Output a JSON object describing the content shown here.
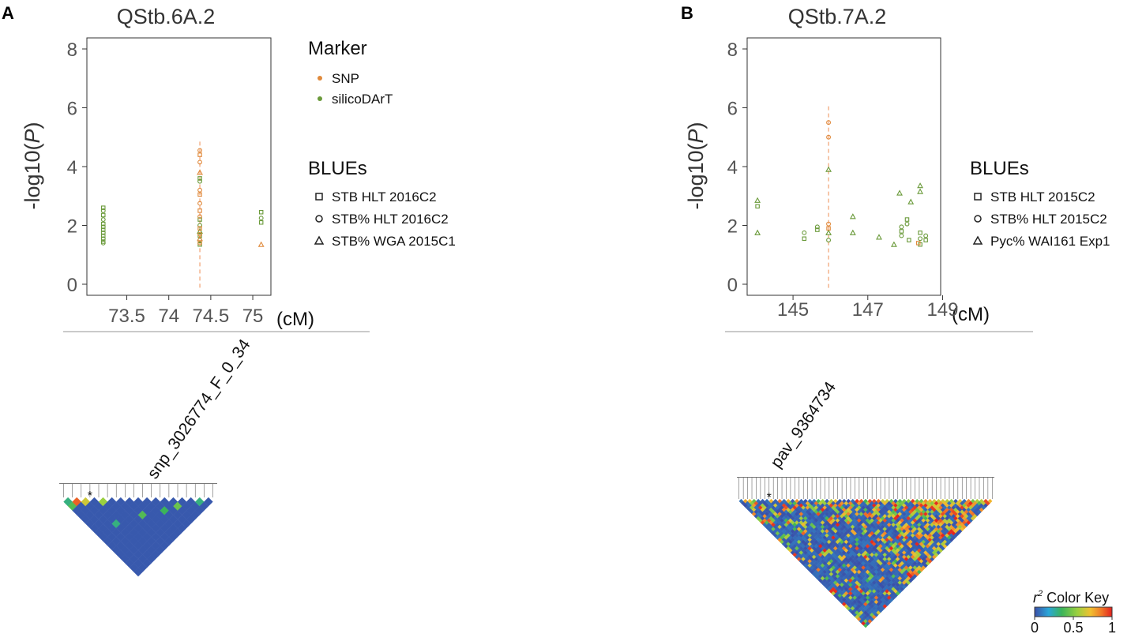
{
  "chart_data": [
    {
      "type": "scatter",
      "panel_label": "A",
      "title": "QStb.6A.2",
      "ylabel_prefix": "-log10(",
      "ylabel_var": "P",
      "ylabel_suffix": ")",
      "xunit": "(cM)",
      "ylim": [
        0,
        8
      ],
      "xlim": [
        73.1,
        75.15
      ],
      "xticks": [
        73.5,
        74,
        74.5,
        75
      ],
      "xtick_labels": [
        "73.5",
        "74",
        "74.5",
        "75"
      ],
      "yticks": [
        0,
        2,
        4,
        6,
        8
      ],
      "ytick_labels": [
        "0",
        "2",
        "4",
        "6",
        "8"
      ],
      "peak_x": 74.37,
      "peak_ymax": 4.85,
      "legend_marker_title": "Marker",
      "legend_marker_items": [
        {
          "label": "SNP",
          "color": "#e08a3c"
        },
        {
          "label": "silicoDArT",
          "color": "#6a9a3a"
        }
      ],
      "legend_blues_title": "BLUEs",
      "legend_blues_items": [
        {
          "label": "STB HLT 2016C2",
          "shape": "square"
        },
        {
          "label": "STB% HLT 2016C2",
          "shape": "circle"
        },
        {
          "label": "STB% WGA 2015C1",
          "shape": "triangle"
        }
      ],
      "series": [
        {
          "name": "silicoDArT",
          "color": "#6a9a3a",
          "points": [
            {
              "x": 73.22,
              "y": 2.6,
              "shape": "square"
            },
            {
              "x": 73.22,
              "y": 2.5,
              "shape": "circle"
            },
            {
              "x": 73.22,
              "y": 2.35,
              "shape": "square"
            },
            {
              "x": 73.22,
              "y": 2.2,
              "shape": "circle"
            },
            {
              "x": 73.22,
              "y": 2.05,
              "shape": "square"
            },
            {
              "x": 73.22,
              "y": 1.95,
              "shape": "circle"
            },
            {
              "x": 73.22,
              "y": 1.85,
              "shape": "square"
            },
            {
              "x": 73.22,
              "y": 1.75,
              "shape": "circle"
            },
            {
              "x": 73.22,
              "y": 1.65,
              "shape": "square"
            },
            {
              "x": 73.22,
              "y": 1.55,
              "shape": "circle"
            },
            {
              "x": 73.22,
              "y": 1.45,
              "shape": "square"
            },
            {
              "x": 73.22,
              "y": 1.4,
              "shape": "circle"
            },
            {
              "x": 74.37,
              "y": 3.6,
              "shape": "square"
            },
            {
              "x": 74.37,
              "y": 3.5,
              "shape": "circle"
            },
            {
              "x": 74.37,
              "y": 2.2,
              "shape": "square"
            },
            {
              "x": 74.37,
              "y": 2.0,
              "shape": "circle"
            },
            {
              "x": 74.37,
              "y": 1.8,
              "shape": "triangle"
            },
            {
              "x": 74.37,
              "y": 1.65,
              "shape": "square"
            },
            {
              "x": 74.37,
              "y": 1.5,
              "shape": "circle"
            },
            {
              "x": 74.37,
              "y": 1.35,
              "shape": "square"
            },
            {
              "x": 75.1,
              "y": 2.45,
              "shape": "square"
            },
            {
              "x": 75.1,
              "y": 2.25,
              "shape": "circle"
            },
            {
              "x": 75.1,
              "y": 2.1,
              "shape": "square"
            }
          ]
        },
        {
          "name": "SNP",
          "color": "#e08a3c",
          "points": [
            {
              "x": 74.37,
              "y": 4.55,
              "shape": "circle"
            },
            {
              "x": 74.37,
              "y": 4.4,
              "shape": "square"
            },
            {
              "x": 74.37,
              "y": 4.15,
              "shape": "circle"
            },
            {
              "x": 74.37,
              "y": 3.8,
              "shape": "triangle"
            },
            {
              "x": 74.37,
              "y": 3.2,
              "shape": "circle"
            },
            {
              "x": 74.37,
              "y": 3.05,
              "shape": "square"
            },
            {
              "x": 74.37,
              "y": 2.75,
              "shape": "circle"
            },
            {
              "x": 74.37,
              "y": 2.5,
              "shape": "square"
            },
            {
              "x": 74.37,
              "y": 2.3,
              "shape": "circle"
            },
            {
              "x": 74.37,
              "y": 1.9,
              "shape": "square"
            },
            {
              "x": 74.37,
              "y": 1.7,
              "shape": "circle"
            },
            {
              "x": 74.37,
              "y": 1.55,
              "shape": "triangle"
            },
            {
              "x": 74.37,
              "y": 1.4,
              "shape": "circle"
            },
            {
              "x": 75.1,
              "y": 1.35,
              "shape": "triangle"
            }
          ]
        }
      ],
      "ld_marker_label": "snp_3026774_F_0_34",
      "ld_n": 18,
      "ld_highlight_index": 3,
      "ld_hot_cells": [
        {
          "i": 0,
          "j": 1,
          "r2": 0.3
        },
        {
          "i": 1,
          "j": 2,
          "r2": 0.9
        },
        {
          "i": 2,
          "j": 3,
          "r2": 0.65
        },
        {
          "i": 0,
          "j": 2,
          "r2": 0.4
        },
        {
          "i": 4,
          "j": 5,
          "r2": 0.55
        },
        {
          "i": 7,
          "j": 11,
          "r2": 0.4
        },
        {
          "i": 10,
          "j": 13,
          "r2": 0.35
        },
        {
          "i": 3,
          "j": 9,
          "r2": 0.3
        },
        {
          "i": 12,
          "j": 14,
          "r2": 0.45
        },
        {
          "i": 15,
          "j": 16,
          "r2": 0.3
        }
      ]
    },
    {
      "type": "scatter",
      "panel_label": "B",
      "title": "QStb.7A.2",
      "ylabel_prefix": "-log10(",
      "ylabel_var": "P",
      "ylabel_suffix": ")",
      "xunit": "(cM)",
      "ylim": [
        0,
        8
      ],
      "xlim": [
        143.9,
        148.8
      ],
      "xticks": [
        145,
        147,
        149
      ],
      "xtick_labels": [
        "145",
        "147",
        "149"
      ],
      "yticks": [
        0,
        2,
        4,
        6,
        8
      ],
      "ytick_labels": [
        "0",
        "2",
        "4",
        "6",
        "8"
      ],
      "peak_x": 145.95,
      "peak_ymax": 6.05,
      "legend_blues_title": "BLUEs",
      "legend_blues_items": [
        {
          "label": "STB HLT 2015C2",
          "shape": "square"
        },
        {
          "label": "STB% HLT 2015C2",
          "shape": "circle"
        },
        {
          "label": "Pyc% WAI161 Exp1",
          "shape": "triangle"
        }
      ],
      "series": [
        {
          "name": "silicoDArT",
          "color": "#6a9a3a",
          "points": [
            {
              "x": 144.05,
              "y": 2.85,
              "shape": "triangle"
            },
            {
              "x": 144.05,
              "y": 2.65,
              "shape": "square"
            },
            {
              "x": 144.05,
              "y": 1.75,
              "shape": "triangle"
            },
            {
              "x": 145.3,
              "y": 1.75,
              "shape": "circle"
            },
            {
              "x": 145.3,
              "y": 1.55,
              "shape": "square"
            },
            {
              "x": 145.65,
              "y": 1.95,
              "shape": "circle"
            },
            {
              "x": 145.65,
              "y": 1.85,
              "shape": "square"
            },
            {
              "x": 145.95,
              "y": 3.9,
              "shape": "triangle"
            },
            {
              "x": 145.95,
              "y": 1.75,
              "shape": "triangle"
            },
            {
              "x": 145.95,
              "y": 1.5,
              "shape": "circle"
            },
            {
              "x": 146.6,
              "y": 2.3,
              "shape": "triangle"
            },
            {
              "x": 146.6,
              "y": 1.75,
              "shape": "triangle"
            },
            {
              "x": 147.3,
              "y": 1.6,
              "shape": "triangle"
            },
            {
              "x": 147.7,
              "y": 1.35,
              "shape": "triangle"
            },
            {
              "x": 147.85,
              "y": 3.1,
              "shape": "triangle"
            },
            {
              "x": 147.9,
              "y": 1.95,
              "shape": "circle"
            },
            {
              "x": 147.9,
              "y": 1.8,
              "shape": "square"
            },
            {
              "x": 147.9,
              "y": 1.65,
              "shape": "circle"
            },
            {
              "x": 148.05,
              "y": 2.2,
              "shape": "square"
            },
            {
              "x": 148.05,
              "y": 2.05,
              "shape": "circle"
            },
            {
              "x": 148.1,
              "y": 1.5,
              "shape": "square"
            },
            {
              "x": 148.15,
              "y": 2.8,
              "shape": "triangle"
            },
            {
              "x": 148.4,
              "y": 3.35,
              "shape": "triangle"
            },
            {
              "x": 148.4,
              "y": 3.15,
              "shape": "triangle"
            },
            {
              "x": 148.4,
              "y": 1.75,
              "shape": "square"
            },
            {
              "x": 148.4,
              "y": 1.55,
              "shape": "circle"
            },
            {
              "x": 148.4,
              "y": 1.35,
              "shape": "square"
            },
            {
              "x": 148.55,
              "y": 1.65,
              "shape": "circle"
            },
            {
              "x": 148.55,
              "y": 1.5,
              "shape": "square"
            }
          ]
        },
        {
          "name": "SNP",
          "color": "#e08a3c",
          "points": [
            {
              "x": 145.95,
              "y": 5.5,
              "shape": "circle"
            },
            {
              "x": 145.95,
              "y": 5.0,
              "shape": "circle"
            },
            {
              "x": 145.95,
              "y": 2.05,
              "shape": "circle"
            },
            {
              "x": 145.95,
              "y": 1.9,
              "shape": "square"
            },
            {
              "x": 148.35,
              "y": 1.4,
              "shape": "square"
            }
          ]
        }
      ],
      "ld_marker_label": "pav_9364734",
      "ld_n": 60,
      "ld_highlight_index": 7,
      "color_key_title_var": "r",
      "color_key_title_sup": "2",
      "color_key_title_text": " Color Key",
      "color_key_ticks": [
        "0",
        "0.5",
        "1"
      ]
    }
  ]
}
